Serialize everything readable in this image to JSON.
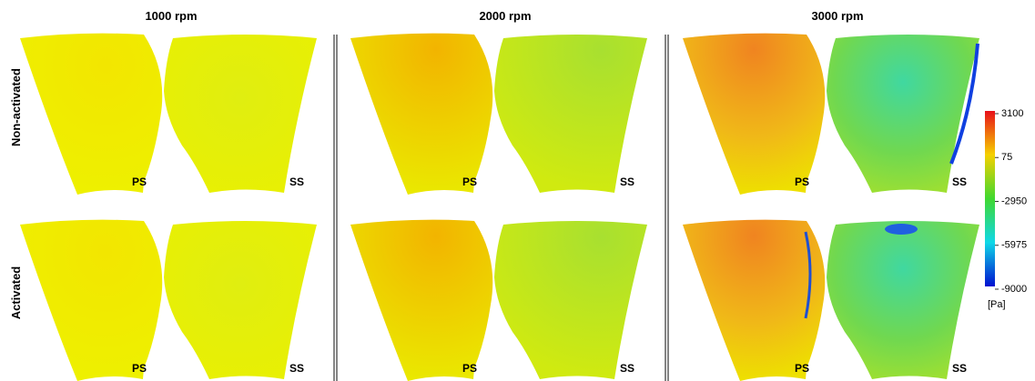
{
  "column_titles": [
    "1000 rpm",
    "2000 rpm",
    "3000 rpm"
  ],
  "row_labels": [
    "Non-activated",
    "Activated"
  ],
  "panel_labels": {
    "pressure_side": "PS",
    "suction_side": "SS"
  },
  "colorbar": {
    "ticks": [
      3100,
      75,
      -2950,
      -5975,
      -9000
    ],
    "unit": "[Pa]"
  }
}
